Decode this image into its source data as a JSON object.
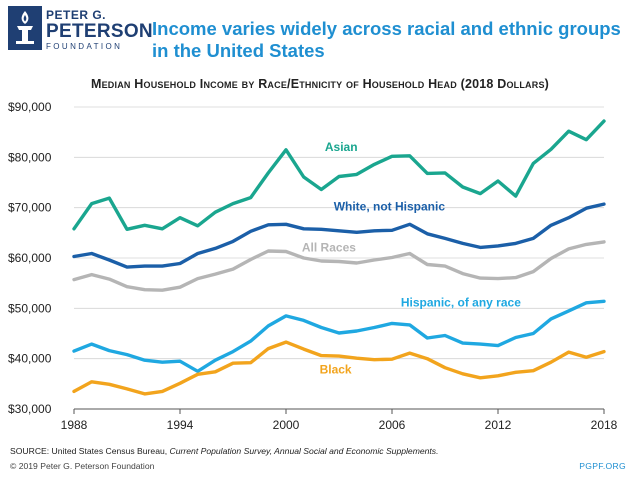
{
  "logo": {
    "line1": "PETER G.",
    "line2": "PETERSON",
    "line3": "FOUNDATION"
  },
  "header": {
    "title": "Income varies widely across racial and ethnic groups in the United States"
  },
  "footer": {
    "source_label": "SOURCE: United States Census Bureau,",
    "source_title": "Current Population Survey, Annual Social and Economic Supplements.",
    "copyright": "© 2019 Peter G. Peterson Foundation",
    "site": "PGPF.ORG"
  },
  "chart_data": {
    "type": "line",
    "title": "Median Household Income by Race/Ethnicity of Household Head (2018 Dollars)",
    "xlabel": "",
    "ylabel": "",
    "xlim": [
      1988,
      2018
    ],
    "ylim": [
      30000,
      90000
    ],
    "grid": true,
    "x_ticks": [
      1988,
      1994,
      2000,
      2006,
      2012,
      2018
    ],
    "x_tick_labels": [
      "1988",
      "1994",
      "2000",
      "2006",
      "2012",
      "2018"
    ],
    "y_ticks": [
      30000,
      40000,
      50000,
      60000,
      70000,
      80000,
      90000
    ],
    "y_tick_labels": [
      "$30,000",
      "$40,000",
      "$50,000",
      "$60,000",
      "$70,000",
      "$80,000",
      "$90,000"
    ],
    "legend": "inline labels",
    "x": [
      1988,
      1989,
      1990,
      1991,
      1992,
      1993,
      1994,
      1995,
      1996,
      1997,
      1998,
      1999,
      2000,
      2001,
      2002,
      2003,
      2004,
      2005,
      2006,
      2007,
      2008,
      2009,
      2010,
      2011,
      2012,
      2013,
      2014,
      2015,
      2016,
      2017,
      2018
    ],
    "series": [
      {
        "name": "Asian",
        "color": "#1aa68f",
        "label_x": 2002.2,
        "label_y": 81300,
        "values": [
          65800,
          70800,
          71900,
          65700,
          66500,
          65800,
          68000,
          66400,
          69100,
          70800,
          72000,
          76900,
          81500,
          76100,
          73600,
          76200,
          76600,
          78600,
          80200,
          80300,
          76800,
          76900,
          74100,
          72800,
          75300,
          72300,
          78800,
          81600,
          85200,
          83500,
          87200
        ]
      },
      {
        "name": "White, not Hispanic",
        "color": "#1b5fa8",
        "label_x": 2002.7,
        "label_y": 69400,
        "values": [
          60300,
          60900,
          59600,
          58200,
          58400,
          58400,
          58900,
          60900,
          61900,
          63300,
          65300,
          66600,
          66700,
          65800,
          65700,
          65400,
          65100,
          65400,
          65500,
          66700,
          64800,
          63900,
          62900,
          62100,
          62400,
          62900,
          63900,
          66500,
          68000,
          69900,
          70700
        ]
      },
      {
        "name": "All Races",
        "color": "#b5b5b5",
        "label_x": 2000.9,
        "label_y": 61300,
        "values": [
          55700,
          56700,
          55800,
          54300,
          53700,
          53600,
          54200,
          55900,
          56800,
          57800,
          59700,
          61400,
          61300,
          60000,
          59400,
          59300,
          59000,
          59600,
          60100,
          60900,
          58700,
          58400,
          56900,
          56000,
          55900,
          56100,
          57300,
          59900,
          61800,
          62700,
          63200
        ]
      },
      {
        "name": "Hispanic, of any race",
        "color": "#1fa8e1",
        "label_x": 2006.5,
        "label_y": 50400,
        "values": [
          41500,
          42900,
          41600,
          40800,
          39700,
          39300,
          39500,
          37500,
          39700,
          41400,
          43500,
          46500,
          48500,
          47600,
          46200,
          45100,
          45500,
          46200,
          47000,
          46700,
          44100,
          44600,
          43100,
          42900,
          42600,
          44200,
          45000,
          47900,
          49500,
          51100,
          51400
        ]
      },
      {
        "name": "Black",
        "color": "#f2a41d",
        "label_x": 2001.9,
        "label_y": 37100,
        "values": [
          33500,
          35400,
          34900,
          34000,
          33000,
          33500,
          35100,
          36900,
          37400,
          39100,
          39200,
          42000,
          43300,
          41900,
          40600,
          40500,
          40100,
          39800,
          39900,
          41100,
          40000,
          38200,
          37000,
          36200,
          36600,
          37300,
          37600,
          39300,
          41300,
          40300,
          41400
        ]
      }
    ]
  }
}
